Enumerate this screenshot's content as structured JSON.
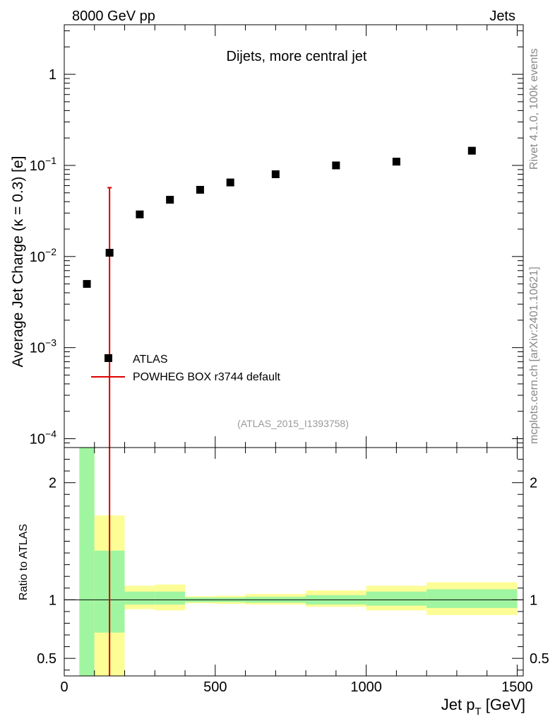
{
  "header": {
    "left": "8000 GeV pp",
    "right": "Jets"
  },
  "side_labels": {
    "rivet": "Rivet 4.1.0,  100k events",
    "mcplots": "mcplots.cern.ch [arXiv:2401.10621]"
  },
  "chart_data": [
    {
      "type": "scatter",
      "panel": "main",
      "title": "Dijets, more central jet",
      "watermark": "(ATLAS_2015_I1393758)",
      "ylabel": "Average Jet Charge (κ = 0.3) [e]",
      "yscale": "log",
      "ylim": [
        8e-05,
        3.5
      ],
      "xlim": [
        0,
        1520
      ],
      "y_ticks": [
        {
          "value": 0.0001,
          "base": "10",
          "exp": "−4"
        },
        {
          "value": 0.001,
          "base": "10",
          "exp": "−3"
        },
        {
          "value": 0.01,
          "base": "10",
          "exp": "−2"
        },
        {
          "value": 0.1,
          "base": "10",
          "exp": "−1"
        },
        {
          "value": 1,
          "base": "1",
          "exp": ""
        }
      ],
      "legend_position": "lower-left",
      "series": [
        {
          "name": "ATLAS",
          "marker": "square",
          "color": "#000000",
          "x": [
            75,
            150,
            250,
            350,
            450,
            550,
            700,
            900,
            1100,
            1350
          ],
          "y": [
            0.005,
            0.011,
            0.029,
            0.042,
            0.054,
            0.065,
            0.08,
            0.1,
            0.11,
            0.145
          ]
        },
        {
          "name": "POWHEG BOX r3744 default",
          "marker": "line",
          "color": "#dd0000",
          "x": [
            150
          ],
          "y_low": [
            8e-05
          ],
          "y_high": [
            0.057
          ]
        }
      ]
    },
    {
      "type": "bar",
      "panel": "ratio",
      "ylabel": "Ratio to ATLAS",
      "xlabel": "Jet p",
      "xlabel_sub": "T",
      "xlabel_unit": " [GeV]",
      "ylim": [
        0.35,
        2.3
      ],
      "xlim": [
        0,
        1520
      ],
      "x_ticks": [
        0,
        500,
        1000,
        1500
      ],
      "y_ticks": [
        0.5,
        1,
        2
      ],
      "reference_line": 1,
      "bins": [
        {
          "lo": 50,
          "hi": 100,
          "stat": [
            0.35,
            2.3
          ],
          "total": [
            0.35,
            2.3
          ]
        },
        {
          "lo": 100,
          "hi": 200,
          "stat": [
            0.72,
            1.42
          ],
          "total": [
            0.35,
            1.72
          ]
        },
        {
          "lo": 200,
          "hi": 300,
          "stat": [
            0.96,
            1.07
          ],
          "total": [
            0.92,
            1.12
          ]
        },
        {
          "lo": 300,
          "hi": 400,
          "stat": [
            0.96,
            1.07
          ],
          "total": [
            0.91,
            1.13
          ]
        },
        {
          "lo": 400,
          "hi": 500,
          "stat": [
            0.98,
            1.02
          ],
          "total": [
            0.97,
            1.03
          ]
        },
        {
          "lo": 500,
          "hi": 600,
          "stat": [
            0.98,
            1.02
          ],
          "total": [
            0.965,
            1.035
          ]
        },
        {
          "lo": 600,
          "hi": 800,
          "stat": [
            0.975,
            1.025
          ],
          "total": [
            0.96,
            1.05
          ]
        },
        {
          "lo": 800,
          "hi": 1000,
          "stat": [
            0.96,
            1.04
          ],
          "total": [
            0.94,
            1.08
          ]
        },
        {
          "lo": 1000,
          "hi": 1200,
          "stat": [
            0.95,
            1.07
          ],
          "total": [
            0.91,
            1.12
          ]
        },
        {
          "lo": 1200,
          "hi": 1500,
          "stat": [
            0.93,
            1.09
          ],
          "total": [
            0.87,
            1.15
          ]
        }
      ],
      "mc_line": {
        "x": 150,
        "y_low": 0.35,
        "y_high": 2.3
      },
      "colors": {
        "stat": "#a0f5a0",
        "total": "#fdfd96",
        "mc": "#dd0000"
      }
    }
  ]
}
